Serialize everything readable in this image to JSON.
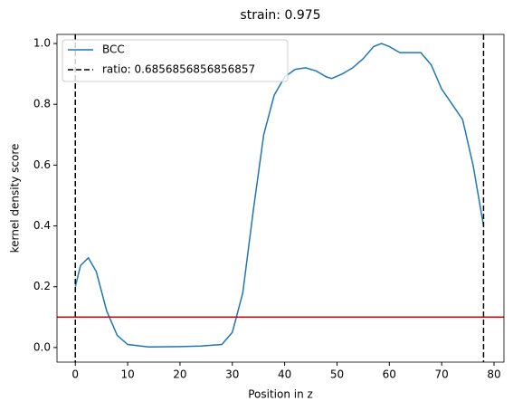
{
  "chart_data": {
    "type": "line",
    "title": "strain: 0.975",
    "xlabel": "Position in z",
    "ylabel": "kernel density score",
    "series": [
      {
        "name": "BCC",
        "color": "#1f77b4",
        "x": [
          0,
          1,
          2.5,
          4,
          6,
          8,
          10,
          14,
          20,
          24,
          28,
          30,
          32,
          34,
          36,
          38,
          40,
          42,
          44,
          46,
          48,
          49,
          51,
          53,
          55,
          57,
          58.5,
          60,
          62,
          64,
          66,
          68,
          70,
          72,
          74,
          76,
          78
        ],
        "values": [
          0.2,
          0.27,
          0.295,
          0.25,
          0.12,
          0.04,
          0.01,
          0.002,
          0.003,
          0.005,
          0.01,
          0.05,
          0.18,
          0.45,
          0.7,
          0.83,
          0.89,
          0.915,
          0.92,
          0.91,
          0.89,
          0.885,
          0.9,
          0.92,
          0.95,
          0.99,
          1.0,
          0.99,
          0.97,
          0.97,
          0.97,
          0.93,
          0.85,
          0.8,
          0.75,
          0.6,
          0.4
        ]
      }
    ],
    "vlines": {
      "name": "ratio: 0.6856856856856857",
      "color": "#000000",
      "x": [
        0,
        78
      ]
    },
    "hline": {
      "color": "#e00000",
      "y": 0.1
    },
    "xlim": [
      -3.5,
      81.9
    ],
    "ylim": [
      -0.048,
      1.03
    ],
    "xticks": [
      0,
      10,
      20,
      30,
      40,
      50,
      60,
      70,
      80
    ],
    "yticks": [
      {
        "value": 0,
        "label": "0.0"
      },
      {
        "value": 0.2,
        "label": "0.2"
      },
      {
        "value": 0.4,
        "label": "0.4"
      },
      {
        "value": 0.6,
        "label": "0.6"
      },
      {
        "value": 0.8,
        "label": "0.8"
      },
      {
        "value": 1,
        "label": "1.0"
      }
    ],
    "legend": "upper left"
  }
}
